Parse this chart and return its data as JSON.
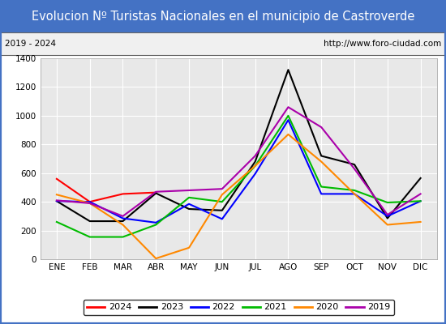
{
  "title": "Evolucion Nº Turistas Nacionales en el municipio de Castroverde",
  "subtitle_left": "2019 - 2024",
  "subtitle_right": "http://www.foro-ciudad.com",
  "months": [
    "ENE",
    "FEB",
    "MAR",
    "ABR",
    "MAY",
    "JUN",
    "JUL",
    "AGO",
    "SEP",
    "OCT",
    "NOV",
    "DIC"
  ],
  "series": {
    "2024": [
      560,
      400,
      455,
      465,
      null,
      null,
      null,
      null,
      null,
      null,
      null,
      null
    ],
    "2023": [
      405,
      265,
      265,
      460,
      350,
      340,
      680,
      1320,
      720,
      660,
      285,
      565
    ],
    "2022": [
      405,
      400,
      285,
      255,
      385,
      280,
      595,
      970,
      455,
      455,
      300,
      405
    ],
    "2021": [
      260,
      155,
      155,
      240,
      430,
      400,
      650,
      1000,
      505,
      480,
      395,
      405
    ],
    "2020": [
      450,
      390,
      240,
      5,
      80,
      450,
      650,
      870,
      680,
      455,
      240,
      260
    ],
    "2019": [
      410,
      390,
      300,
      470,
      480,
      490,
      720,
      1060,
      920,
      630,
      310,
      455
    ]
  },
  "colors": {
    "2024": "#ff0000",
    "2023": "#000000",
    "2022": "#0000ff",
    "2021": "#00bb00",
    "2020": "#ff8800",
    "2019": "#aa00aa"
  },
  "ylim": [
    0,
    1400
  ],
  "yticks": [
    0,
    200,
    400,
    600,
    800,
    1000,
    1200,
    1400
  ],
  "title_bg": "#4472c4",
  "title_color": "#ffffff",
  "title_fontsize": 10.5,
  "plot_bg": "#e8e8e8",
  "axes_bg": "#ffffff",
  "border_color": "#4472c4",
  "linewidth": 1.5
}
